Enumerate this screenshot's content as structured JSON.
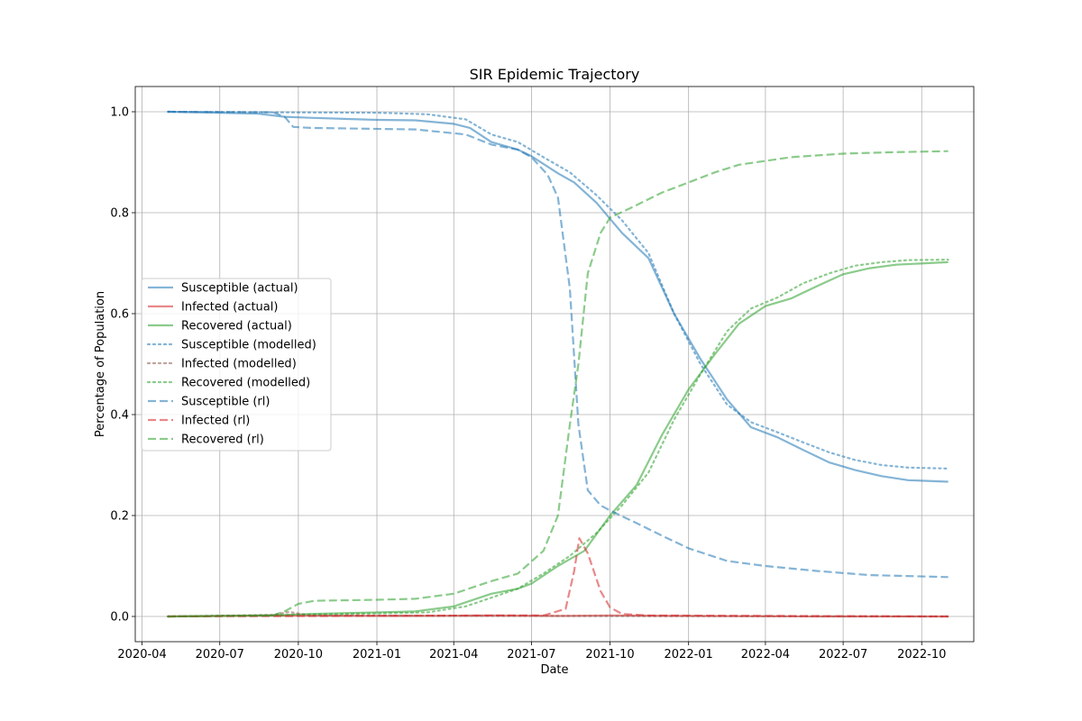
{
  "chart_data": {
    "type": "line",
    "title": "SIR Epidemic Trajectory",
    "xlabel": "Date",
    "ylabel": "Percentage of Population",
    "xlim": [
      "2020-03-24",
      "2022-12-01"
    ],
    "ylim": [
      -0.05,
      1.05
    ],
    "grid": true,
    "legend_position": "center-left",
    "x_ticks": [
      "2020-04-01",
      "2020-07-01",
      "2020-10-01",
      "2021-01-01",
      "2021-04-01",
      "2021-07-01",
      "2021-10-01",
      "2022-01-01",
      "2022-04-01",
      "2022-07-01",
      "2022-10-01"
    ],
    "x_tick_labels": [
      "2020-04",
      "2020-07",
      "2020-10",
      "2021-01",
      "2021-04",
      "2021-07",
      "2021-10",
      "2022-01",
      "2022-04",
      "2022-07",
      "2022-10"
    ],
    "y_ticks": [
      0.0,
      0.2,
      0.4,
      0.6,
      0.8,
      1.0
    ],
    "y_tick_labels": [
      "0.0",
      "0.2",
      "0.4",
      "0.6",
      "0.8",
      "1.0"
    ],
    "series": [
      {
        "name": "Susceptible (actual)",
        "color": "#1f77b4",
        "style": "solid",
        "x": [
          "2020-05-01",
          "2020-07-01",
          "2020-08-15",
          "2020-09-15",
          "2020-10-15",
          "2021-01-01",
          "2021-02-15",
          "2021-04-01",
          "2021-04-20",
          "2021-05-15",
          "2021-06-15",
          "2021-07-01",
          "2021-08-01",
          "2021-08-20",
          "2021-09-15",
          "2021-10-15",
          "2021-11-15",
          "2021-12-15",
          "2022-01-15",
          "2022-02-15",
          "2022-03-15",
          "2022-04-15",
          "2022-05-15",
          "2022-06-15",
          "2022-07-15",
          "2022-08-15",
          "2022-09-15",
          "2022-11-01"
        ],
        "y": [
          1.0,
          0.998,
          0.996,
          0.99,
          0.988,
          0.984,
          0.983,
          0.976,
          0.968,
          0.94,
          0.925,
          0.912,
          0.878,
          0.86,
          0.82,
          0.76,
          0.71,
          0.6,
          0.51,
          0.43,
          0.375,
          0.355,
          0.33,
          0.305,
          0.29,
          0.278,
          0.27,
          0.267
        ]
      },
      {
        "name": "Infected (actual)",
        "color": "#d62728",
        "style": "solid",
        "x": [
          "2020-05-01",
          "2020-09-01",
          "2021-02-01",
          "2021-05-15",
          "2021-08-01",
          "2021-10-01",
          "2022-01-01",
          "2022-06-01",
          "2022-11-01"
        ],
        "y": [
          0.0,
          0.002,
          0.001,
          0.002,
          0.001,
          0.002,
          0.001,
          0.0,
          0.0
        ]
      },
      {
        "name": "Recovered (actual)",
        "color": "#2ca02c",
        "style": "solid",
        "x": [
          "2020-05-01",
          "2020-08-15",
          "2020-09-15",
          "2020-10-15",
          "2021-01-01",
          "2021-02-15",
          "2021-04-01",
          "2021-05-15",
          "2021-06-15",
          "2021-07-01",
          "2021-08-01",
          "2021-09-01",
          "2021-10-01",
          "2021-11-01",
          "2021-12-01",
          "2022-01-01",
          "2022-02-01",
          "2022-03-01",
          "2022-04-01",
          "2022-05-01",
          "2022-06-01",
          "2022-07-01",
          "2022-08-01",
          "2022-09-01",
          "2022-11-01"
        ],
        "y": [
          0.0,
          0.002,
          0.003,
          0.005,
          0.008,
          0.01,
          0.02,
          0.045,
          0.055,
          0.065,
          0.1,
          0.13,
          0.2,
          0.26,
          0.36,
          0.45,
          0.52,
          0.58,
          0.615,
          0.63,
          0.655,
          0.678,
          0.69,
          0.697,
          0.702
        ]
      },
      {
        "name": "Susceptible (modelled)",
        "color": "#1f77b4",
        "style": "dotted",
        "x": [
          "2020-05-01",
          "2020-09-01",
          "2021-01-01",
          "2021-03-01",
          "2021-04-15",
          "2021-05-15",
          "2021-06-15",
          "2021-07-15",
          "2021-08-15",
          "2021-09-15",
          "2021-10-15",
          "2021-11-15",
          "2021-12-15",
          "2022-01-15",
          "2022-02-15",
          "2022-03-15",
          "2022-04-15",
          "2022-05-15",
          "2022-06-15",
          "2022-07-15",
          "2022-08-15",
          "2022-09-15",
          "2022-11-01"
        ],
        "y": [
          1.0,
          0.999,
          0.998,
          0.995,
          0.985,
          0.955,
          0.94,
          0.91,
          0.88,
          0.835,
          0.785,
          0.72,
          0.6,
          0.5,
          0.42,
          0.385,
          0.365,
          0.345,
          0.325,
          0.31,
          0.3,
          0.295,
          0.293
        ]
      },
      {
        "name": "Infected (modelled)",
        "color": "#8c564b",
        "style": "dotted",
        "x": [
          "2020-05-01",
          "2020-09-01",
          "2020-09-20",
          "2020-10-15",
          "2021-06-01",
          "2022-11-01"
        ],
        "y": [
          0.0,
          0.003,
          0.009,
          0.002,
          0.001,
          0.0
        ]
      },
      {
        "name": "Recovered (modelled)",
        "color": "#2ca02c",
        "style": "dotted",
        "x": [
          "2020-05-01",
          "2020-09-01",
          "2020-10-15",
          "2021-01-01",
          "2021-03-01",
          "2021-04-15",
          "2021-06-15",
          "2021-07-15",
          "2021-08-15",
          "2021-09-15",
          "2021-10-15",
          "2021-11-15",
          "2021-12-15",
          "2022-01-15",
          "2022-02-15",
          "2022-03-15",
          "2022-04-15",
          "2022-05-15",
          "2022-06-15",
          "2022-07-15",
          "2022-08-15",
          "2022-09-15",
          "2022-11-01"
        ],
        "y": [
          0.0,
          0.002,
          0.004,
          0.006,
          0.008,
          0.02,
          0.055,
          0.085,
          0.12,
          0.165,
          0.22,
          0.285,
          0.39,
          0.48,
          0.565,
          0.61,
          0.632,
          0.66,
          0.68,
          0.695,
          0.702,
          0.706,
          0.707
        ]
      },
      {
        "name": "Susceptible (rl)",
        "color": "#1f77b4",
        "style": "dashed",
        "x": [
          "2020-05-01",
          "2020-09-01",
          "2020-09-15",
          "2020-09-25",
          "2020-10-15",
          "2021-02-15",
          "2021-04-15",
          "2021-05-15",
          "2021-06-15",
          "2021-07-01",
          "2021-07-20",
          "2021-08-01",
          "2021-08-15",
          "2021-08-25",
          "2021-09-05",
          "2021-09-20",
          "2021-10-01",
          "2021-11-01",
          "2021-12-01",
          "2022-01-01",
          "2022-02-15",
          "2022-04-01",
          "2022-06-01",
          "2022-08-01",
          "2022-11-01"
        ],
        "y": [
          1.0,
          0.999,
          0.99,
          0.97,
          0.968,
          0.965,
          0.955,
          0.935,
          0.925,
          0.91,
          0.875,
          0.83,
          0.65,
          0.38,
          0.25,
          0.22,
          0.21,
          0.185,
          0.16,
          0.135,
          0.11,
          0.1,
          0.09,
          0.082,
          0.078
        ]
      },
      {
        "name": "Infected (rl)",
        "color": "#d62728",
        "style": "dashed",
        "x": [
          "2020-05-01",
          "2021-06-01",
          "2021-07-15",
          "2021-08-10",
          "2021-08-20",
          "2021-08-26",
          "2021-09-05",
          "2021-09-20",
          "2021-10-01",
          "2021-10-15",
          "2021-11-15",
          "2022-11-01"
        ],
        "y": [
          0.0,
          0.002,
          0.002,
          0.015,
          0.09,
          0.155,
          0.125,
          0.05,
          0.018,
          0.005,
          0.002,
          0.0
        ]
      },
      {
        "name": "Recovered (rl)",
        "color": "#2ca02c",
        "style": "dashed",
        "x": [
          "2020-05-01",
          "2020-09-01",
          "2020-09-15",
          "2020-10-01",
          "2020-10-20",
          "2021-01-01",
          "2021-02-15",
          "2021-04-01",
          "2021-05-15",
          "2021-06-15",
          "2021-07-15",
          "2021-08-01",
          "2021-08-15",
          "2021-08-25",
          "2021-09-05",
          "2021-09-20",
          "2021-10-01",
          "2021-11-01",
          "2021-12-01",
          "2022-01-01",
          "2022-02-01",
          "2022-03-01",
          "2022-05-01",
          "2022-07-01",
          "2022-09-01",
          "2022-11-01"
        ],
        "y": [
          0.0,
          0.002,
          0.01,
          0.025,
          0.031,
          0.033,
          0.035,
          0.045,
          0.07,
          0.085,
          0.13,
          0.2,
          0.38,
          0.5,
          0.68,
          0.76,
          0.79,
          0.815,
          0.84,
          0.86,
          0.88,
          0.895,
          0.91,
          0.917,
          0.92,
          0.922
        ]
      }
    ]
  }
}
